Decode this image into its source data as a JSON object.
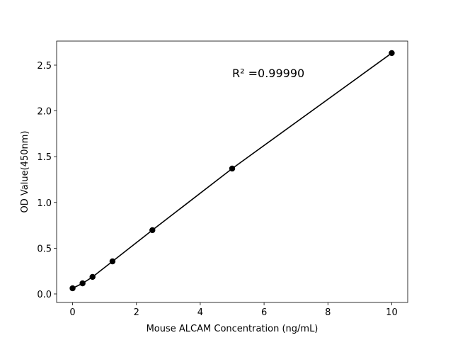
{
  "chart_data": {
    "type": "line",
    "x_label": "Mouse ALCAM Concentration (ng/mL)",
    "y_label": "OD Value(450nm)",
    "annotation": "R² =0.99990",
    "x": [
      0,
      0.3125,
      0.625,
      1.25,
      2.5,
      5,
      10
    ],
    "series": [
      {
        "color": "#000000",
        "values": [
          0.062,
          0.116,
          0.186,
          0.356,
          0.697,
          1.37,
          2.632
        ]
      }
    ],
    "xlim": [
      -0.5,
      10.5
    ],
    "ylim": [
      -0.093,
      2.763
    ],
    "xticks": [
      0,
      2,
      4,
      6,
      8,
      10
    ],
    "yticks": [
      {
        "value": 0,
        "label": "0.0"
      },
      {
        "value": 0.5,
        "label": "0.5"
      },
      {
        "value": 1,
        "label": "1.0"
      },
      {
        "value": 1.5,
        "label": "1.5"
      },
      {
        "value": 2,
        "label": "2.0"
      },
      {
        "value": 2.5,
        "label": "2.5"
      }
    ]
  }
}
